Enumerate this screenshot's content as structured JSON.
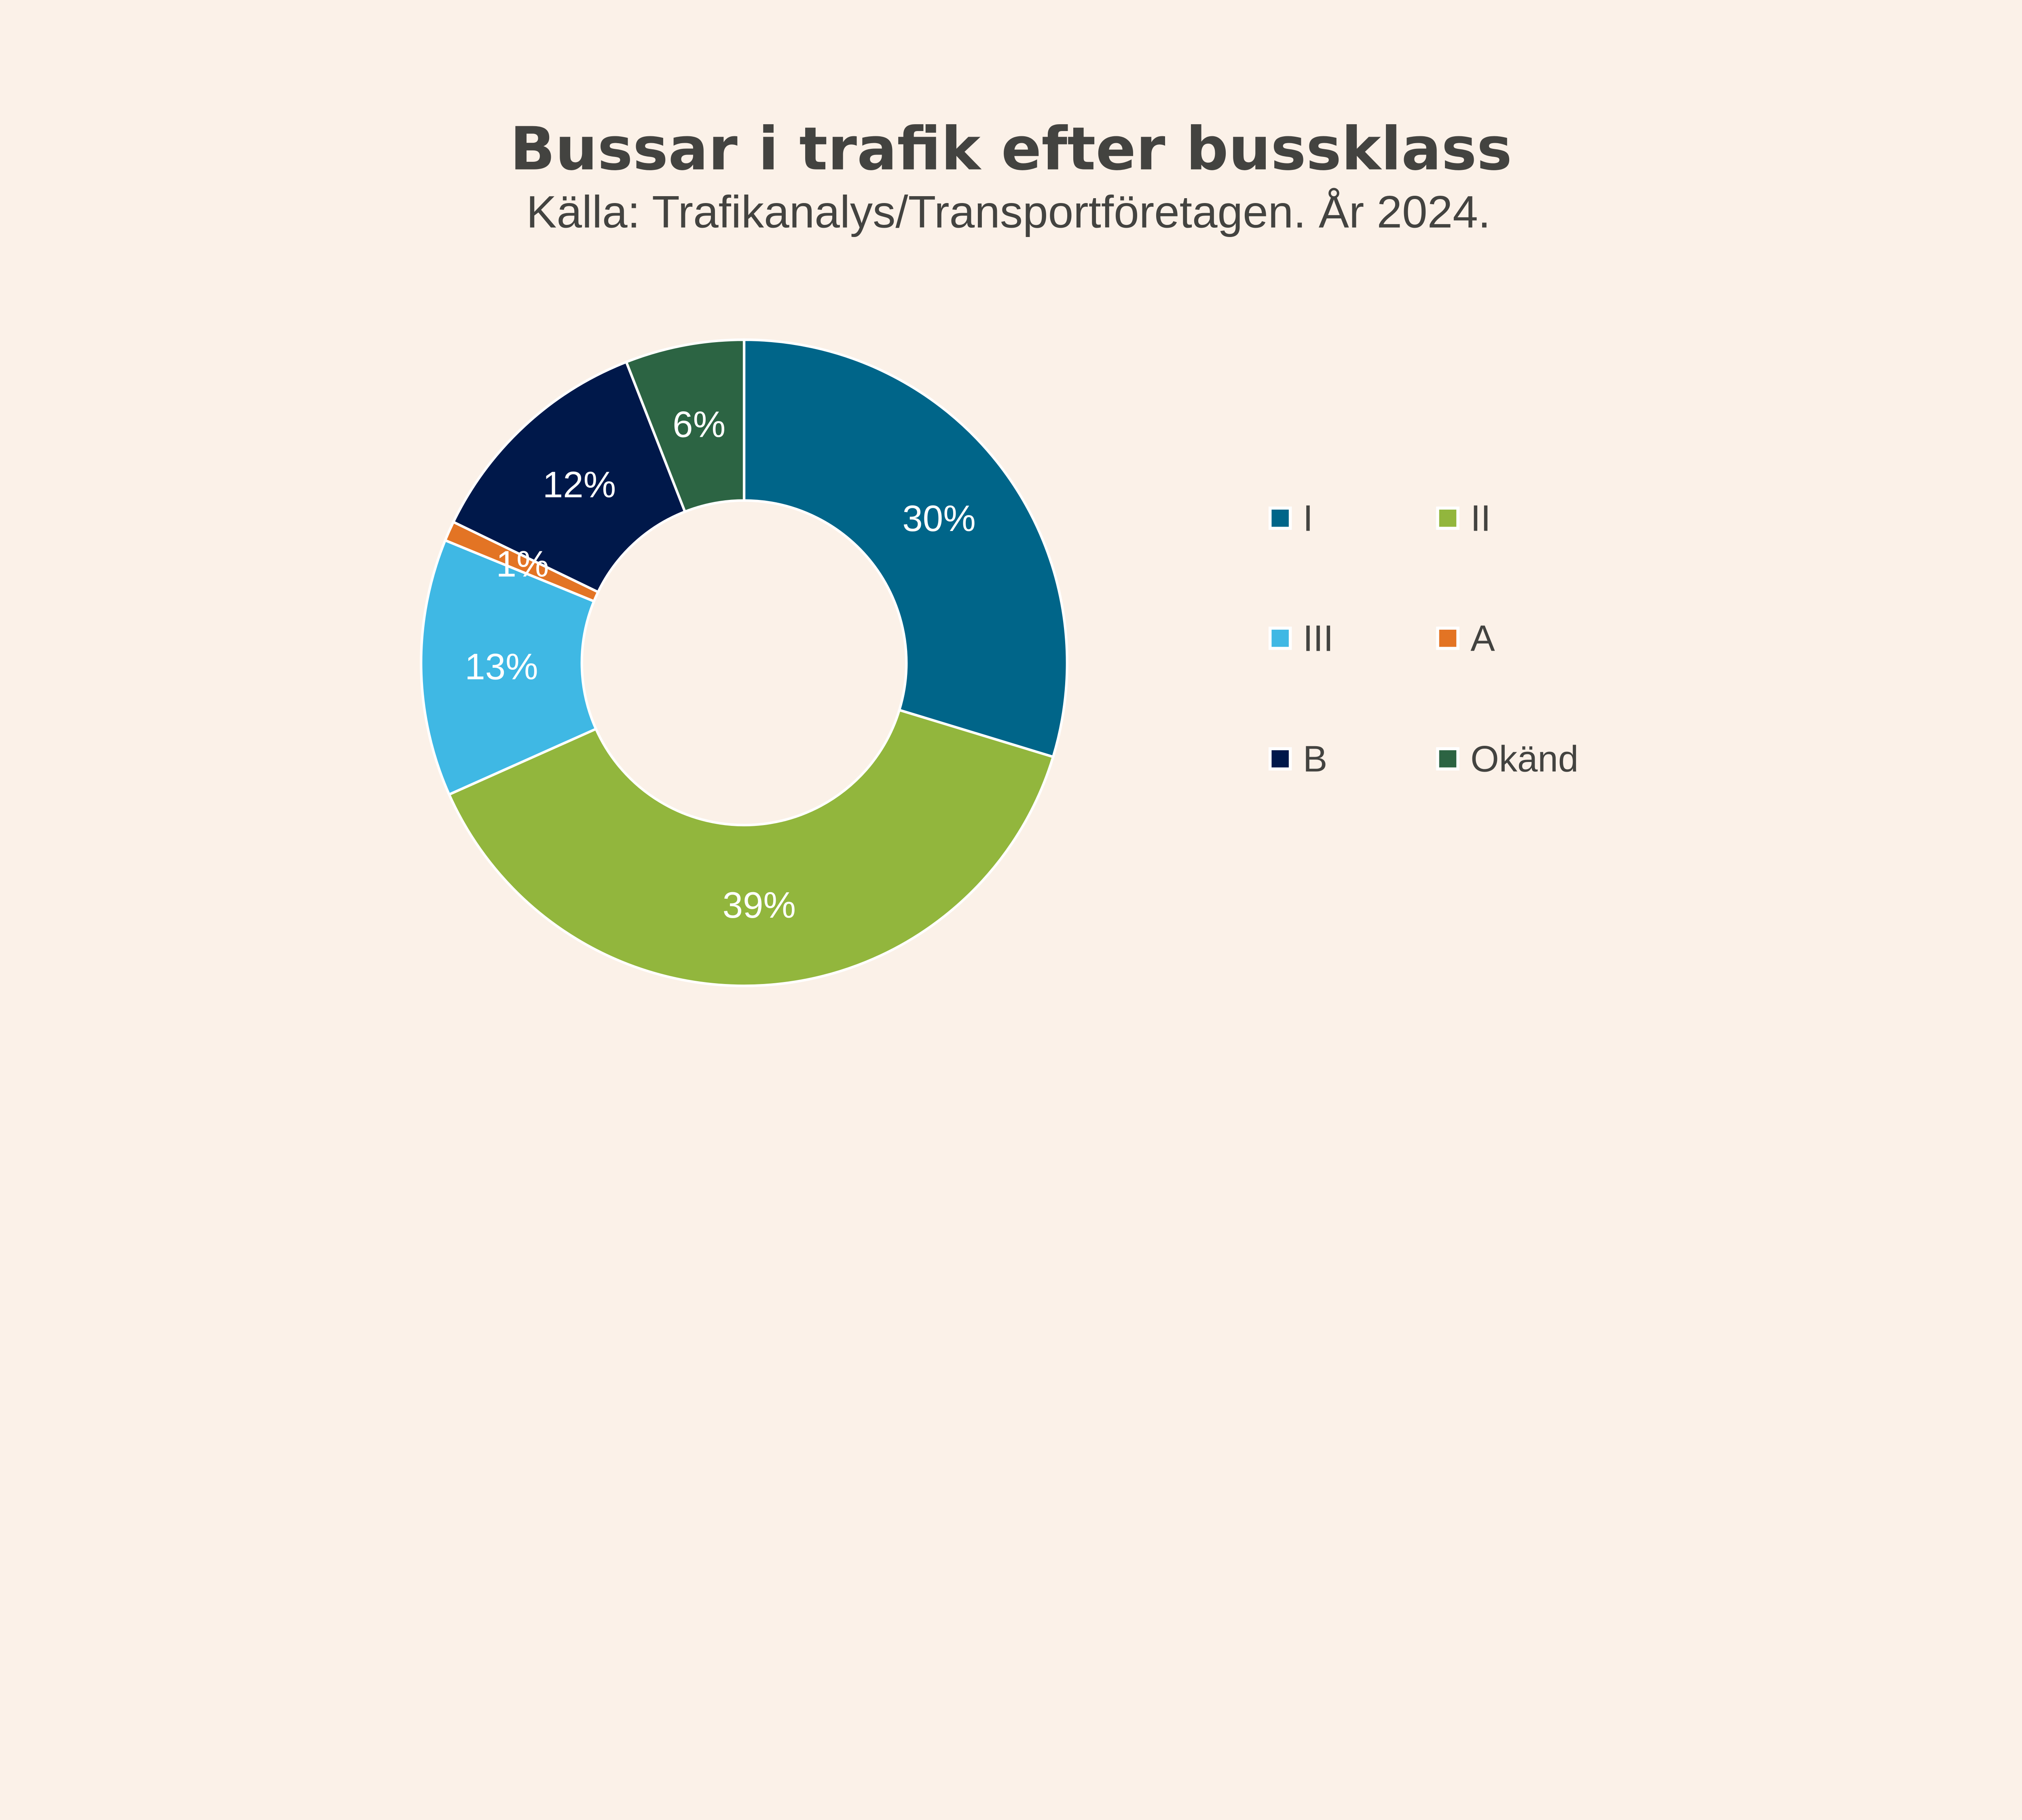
{
  "chart_data": {
    "type": "pie",
    "donut": true,
    "title": "Bussar i trafik efter bussklass",
    "subtitle": "Källa: Trafikanalys/Transportföretagen. År 2024.",
    "categories": [
      "I",
      "II",
      "III",
      "A",
      "B",
      "Okänd"
    ],
    "values": [
      30,
      39,
      13,
      1,
      12,
      6
    ],
    "data_labels": [
      "30%",
      "39%",
      "13%",
      "1%",
      "12%",
      "6%"
    ],
    "colors": [
      "#006589",
      "#92b63d",
      "#3fb8e4",
      "#e37424",
      "#00184a",
      "#2c6443"
    ],
    "legend_position": "right",
    "start_angle": "12 o'clock, clockwise"
  }
}
